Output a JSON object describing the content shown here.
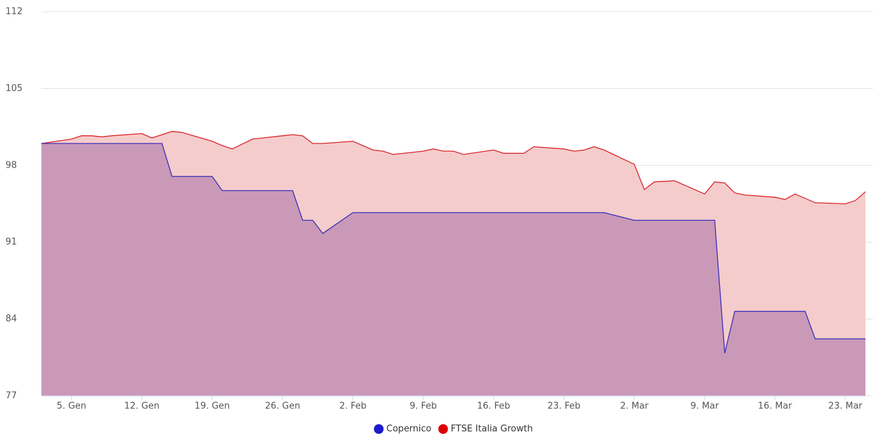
{
  "chart_data": {
    "type": "area",
    "xlim": [
      2,
      84
    ],
    "xticks": [
      {
        "value": 5,
        "label": "5. Gen"
      },
      {
        "value": 12,
        "label": "12. Gen"
      },
      {
        "value": 19,
        "label": "19. Gen"
      },
      {
        "value": 26,
        "label": "26. Gen"
      },
      {
        "value": 33,
        "label": "2. Feb"
      },
      {
        "value": 40,
        "label": "9. Feb"
      },
      {
        "value": 47,
        "label": "16. Feb"
      },
      {
        "value": 54,
        "label": "23. Feb"
      },
      {
        "value": 61,
        "label": "2. Mar"
      },
      {
        "value": 68,
        "label": "9. Mar"
      },
      {
        "value": 75,
        "label": "16. Mar"
      },
      {
        "value": 82,
        "label": "23. Mar"
      }
    ],
    "ylim": [
      77,
      112
    ],
    "yticks": [
      77,
      84,
      91,
      98,
      105,
      112
    ],
    "grid": true,
    "legend": "bottom",
    "series": [
      {
        "name": "FTSE Italia Growth",
        "color": "#d9262b",
        "fill": "#f4cccc",
        "legend_color": "#dd0000",
        "x": [
          2,
          5,
          6,
          7,
          8,
          9,
          12,
          13,
          15,
          16,
          19,
          20,
          21,
          23,
          26,
          27,
          28,
          29,
          30,
          33,
          34,
          35,
          36,
          37,
          40,
          41,
          42,
          43,
          44,
          47,
          48,
          50,
          51,
          54,
          55,
          56,
          57,
          58,
          61,
          62,
          63,
          65,
          68,
          69,
          70,
          71,
          72,
          75,
          76,
          77,
          79,
          82,
          83,
          84
        ],
        "values": [
          100.0,
          100.4,
          100.7,
          100.7,
          100.6,
          100.7,
          100.9,
          100.5,
          101.1,
          101.0,
          100.2,
          99.8,
          99.5,
          100.4,
          100.7,
          100.8,
          100.7,
          100.0,
          100.0,
          100.2,
          99.8,
          99.4,
          99.3,
          99.0,
          99.3,
          99.5,
          99.3,
          99.3,
          99.0,
          99.4,
          99.1,
          99.1,
          99.7,
          99.5,
          99.3,
          99.4,
          99.7,
          99.4,
          98.1,
          95.8,
          96.5,
          96.6,
          95.4,
          96.5,
          96.4,
          95.5,
          95.3,
          95.1,
          94.9,
          95.4,
          94.6,
          94.5,
          94.8,
          95.6
        ]
      },
      {
        "name": "Copernico",
        "color": "#3a2fb8",
        "fill": "#a86fa8",
        "legend_color": "#1a1acc",
        "x": [
          2,
          14,
          15,
          19,
          20,
          27,
          28,
          29,
          30,
          33,
          58,
          61,
          69,
          70,
          71,
          78,
          79,
          84
        ],
        "values": [
          100.0,
          100.0,
          97.0,
          97.0,
          95.7,
          95.7,
          93.0,
          93.0,
          91.8,
          93.7,
          93.7,
          93.0,
          93.0,
          80.9,
          84.7,
          84.7,
          82.2,
          82.2
        ]
      }
    ]
  }
}
